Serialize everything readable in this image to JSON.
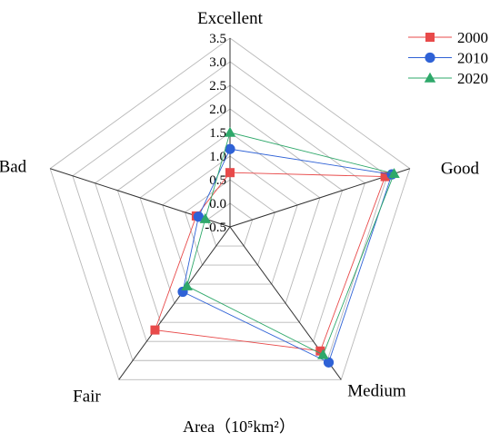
{
  "chart_data": {
    "type": "radar",
    "axes": [
      "Excellent",
      "Good",
      "Medium",
      "Fair",
      "Bad"
    ],
    "ticks": [
      "-0.5",
      "0.0",
      "0.5",
      "1.0",
      "1.5",
      "2.0",
      "2.5",
      "3.0",
      "3.5"
    ],
    "rlim": [
      -0.5,
      3.5
    ],
    "grid": true,
    "legend_position": "top-right",
    "xlabel": "Area（10⁵km²）",
    "series": [
      {
        "name": "2000",
        "color": "#e84a4a",
        "marker": "square",
        "values": [
          0.65,
          2.95,
          2.75,
          2.2,
          0.25
        ]
      },
      {
        "name": "2010",
        "color": "#2f62d6",
        "marker": "circle",
        "values": [
          1.15,
          3.1,
          3.05,
          1.2,
          0.2
        ]
      },
      {
        "name": "2020",
        "color": "#2ea86a",
        "marker": "triangle",
        "values": [
          1.5,
          3.15,
          2.85,
          1.05,
          0.05
        ]
      }
    ]
  }
}
